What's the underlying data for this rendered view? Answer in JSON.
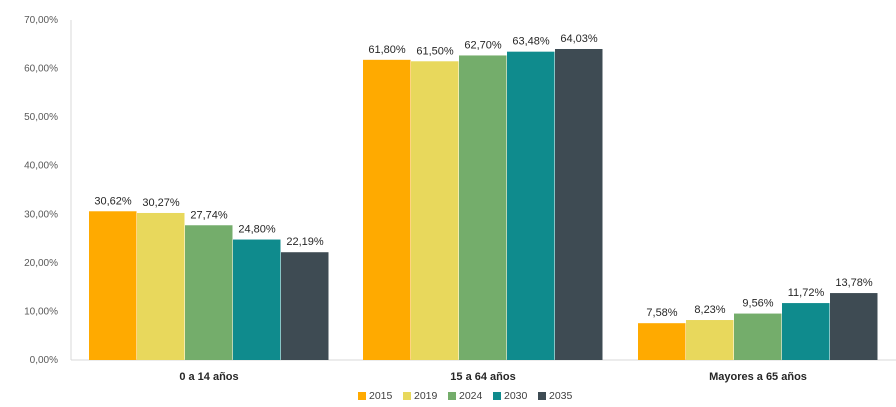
{
  "chart_data": {
    "type": "bar",
    "title": "",
    "xlabel": "",
    "ylabel": "",
    "categories": [
      "0 a 14 años",
      "15 a 64 años",
      "Mayores a 65 años"
    ],
    "series": [
      {
        "name": "2015",
        "color": "#FFAA00",
        "values": [
          30.62,
          61.8,
          7.58
        ],
        "labels": [
          "30,62%",
          "61,80%",
          "7,58%"
        ]
      },
      {
        "name": "2019",
        "color": "#E8D85C",
        "values": [
          30.27,
          61.5,
          8.23
        ],
        "labels": [
          "30,27%",
          "61,50%",
          "8,23%"
        ]
      },
      {
        "name": "2024",
        "color": "#74AD6B",
        "values": [
          27.74,
          62.7,
          9.56
        ],
        "labels": [
          "27,74%",
          "62,70%",
          "9,56%"
        ]
      },
      {
        "name": "2030",
        "color": "#0F8B8D",
        "values": [
          24.8,
          63.48,
          11.72
        ],
        "labels": [
          "24,80%",
          "63,48%",
          "11,72%"
        ]
      },
      {
        "name": "2035",
        "color": "#3E4B53",
        "values": [
          22.19,
          64.03,
          13.78
        ],
        "labels": [
          "22,19%",
          "64,03%",
          "13,78%"
        ]
      }
    ],
    "ylim": [
      0,
      70
    ],
    "yticks": [
      0,
      10,
      20,
      30,
      40,
      50,
      60,
      70
    ],
    "ytick_labels": [
      "0,00%",
      "10,00%",
      "20,00%",
      "30,00%",
      "40,00%",
      "50,00%",
      "60,00%",
      "70,00%"
    ],
    "grid": false,
    "legend_position": "bottom-center"
  }
}
